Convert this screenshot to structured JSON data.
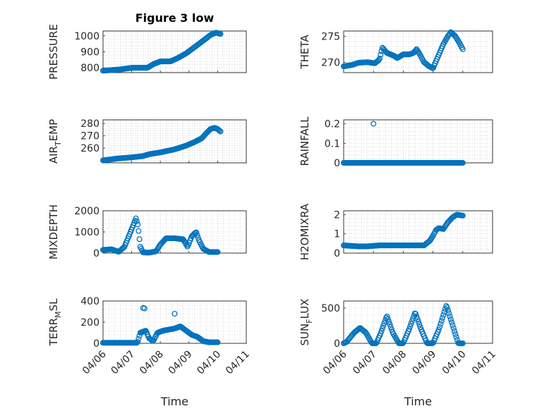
{
  "figure_title": "Figure 3 low",
  "chart_data": [
    {
      "type": "scatter",
      "panel": "PRESSURE",
      "title": "Figure 3 low",
      "ylabel_parts": [
        "PRESSURE"
      ],
      "xlabel": "",
      "xlim": [
        0,
        5
      ],
      "ylim": [
        770,
        1030
      ],
      "yticks": [
        800,
        900,
        1000
      ],
      "ytick_labels": [
        "800",
        "900",
        "1000"
      ],
      "xticks": [
        0,
        1,
        2,
        3,
        4,
        5
      ],
      "xtick_labels": [],
      "keypoints": [
        [
          0,
          782
        ],
        [
          0.6,
          790
        ],
        [
          1.0,
          800
        ],
        [
          1.35,
          800
        ],
        [
          1.55,
          800
        ],
        [
          1.75,
          822
        ],
        [
          2.0,
          840
        ],
        [
          2.35,
          840
        ],
        [
          2.6,
          860
        ],
        [
          2.9,
          890
        ],
        [
          3.2,
          930
        ],
        [
          3.5,
          970
        ],
        [
          3.75,
          1005
        ],
        [
          3.95,
          1020
        ],
        [
          4.1,
          1012
        ]
      ],
      "series": [
        {
          "name": "PRESSURE",
          "x_range": [
            0,
            4.1
          ],
          "count": 130
        }
      ]
    },
    {
      "type": "scatter",
      "panel": "THETA",
      "title": "",
      "ylabel_parts": [
        "THETA"
      ],
      "xlabel": "",
      "xlim": [
        0,
        5
      ],
      "ylim": [
        268,
        276
      ],
      "yticks": [
        270,
        275
      ],
      "ytick_labels": [
        "270",
        "275"
      ],
      "xticks": [
        0,
        1,
        2,
        3,
        4,
        5
      ],
      "xtick_labels": [],
      "keypoints": [
        [
          0,
          269.2
        ],
        [
          0.3,
          269.5
        ],
        [
          0.5,
          269.9
        ],
        [
          0.8,
          270.0
        ],
        [
          1.05,
          269.8
        ],
        [
          1.2,
          270.5
        ],
        [
          1.3,
          272.8
        ],
        [
          1.45,
          271.8
        ],
        [
          1.7,
          271.2
        ],
        [
          1.8,
          270.8
        ],
        [
          2.0,
          271.5
        ],
        [
          2.2,
          271.5
        ],
        [
          2.35,
          271.8
        ],
        [
          2.45,
          272.5
        ],
        [
          2.55,
          271.6
        ],
        [
          2.7,
          270.0
        ],
        [
          2.85,
          269.3
        ],
        [
          3.0,
          268.8
        ],
        [
          3.1,
          270.2
        ],
        [
          3.2,
          271.5
        ],
        [
          3.35,
          273.5
        ],
        [
          3.5,
          275.0
        ],
        [
          3.6,
          275.8
        ],
        [
          3.75,
          275.0
        ],
        [
          3.9,
          273.6
        ],
        [
          4.0,
          272.5
        ]
      ],
      "series": [
        {
          "name": "THETA",
          "x_range": [
            0,
            4.0
          ],
          "count": 130
        }
      ]
    },
    {
      "type": "scatter",
      "panel": "AIR_TEMP",
      "title": "",
      "ylabel_parts": [
        "AIR",
        "T",
        "EMP"
      ],
      "xlabel": "",
      "xlim": [
        0,
        5
      ],
      "ylim": [
        248,
        283
      ],
      "yticks": [
        260,
        270,
        280
      ],
      "ytick_labels": [
        "260",
        "270",
        "280"
      ],
      "xticks": [
        0,
        1,
        2,
        3,
        4,
        5
      ],
      "xtick_labels": [],
      "keypoints": [
        [
          0,
          250
        ],
        [
          0.5,
          251.5
        ],
        [
          1.0,
          252.5
        ],
        [
          1.4,
          253.5
        ],
        [
          1.6,
          255
        ],
        [
          2.0,
          256.5
        ],
        [
          2.5,
          259
        ],
        [
          2.9,
          262
        ],
        [
          3.2,
          265
        ],
        [
          3.45,
          268
        ],
        [
          3.6,
          272
        ],
        [
          3.75,
          275.5
        ],
        [
          3.9,
          276.5
        ],
        [
          4.0,
          275.5
        ],
        [
          4.1,
          273.5
        ]
      ],
      "series": [
        {
          "name": "AIR_TEMP",
          "x_range": [
            0,
            4.1
          ],
          "count": 130
        }
      ]
    },
    {
      "type": "scatter",
      "panel": "RAINFALL",
      "title": "",
      "ylabel_parts": [
        "RAINFALL"
      ],
      "xlabel": "",
      "xlim": [
        0,
        5
      ],
      "ylim": [
        0,
        0.22
      ],
      "yticks": [
        0,
        0.1,
        0.2
      ],
      "ytick_labels": [
        "0",
        "0.1",
        "0.2"
      ],
      "xticks": [
        0,
        1,
        2,
        3,
        4,
        5
      ],
      "xtick_labels": [],
      "keypoints": [
        [
          0,
          0
        ],
        [
          4.0,
          0
        ]
      ],
      "outliers": [
        [
          1.0,
          0.2
        ]
      ],
      "series": [
        {
          "name": "RAINFALL",
          "x_range": [
            0,
            4.0
          ],
          "count": 130
        }
      ]
    },
    {
      "type": "scatter",
      "panel": "MIXDEPTH",
      "title": "",
      "ylabel_parts": [
        "MIXDEPTH"
      ],
      "xlabel": "",
      "xlim": [
        0,
        5
      ],
      "ylim": [
        0,
        2000
      ],
      "yticks": [
        0,
        1000,
        2000
      ],
      "ytick_labels": [
        "0",
        "1000",
        "2000"
      ],
      "xticks": [
        0,
        1,
        2,
        3,
        4,
        5
      ],
      "xtick_labels": [],
      "keypoints": [
        [
          0,
          150
        ],
        [
          0.3,
          180
        ],
        [
          0.55,
          60
        ],
        [
          0.75,
          300
        ],
        [
          0.9,
          800
        ],
        [
          1.05,
          1300
        ],
        [
          1.15,
          1650
        ],
        [
          1.22,
          1300
        ],
        [
          1.3,
          300
        ],
        [
          1.4,
          30
        ],
        [
          1.6,
          20
        ],
        [
          1.85,
          80
        ],
        [
          2.0,
          400
        ],
        [
          2.2,
          700
        ],
        [
          2.5,
          700
        ],
        [
          2.8,
          650
        ],
        [
          2.95,
          300
        ],
        [
          3.1,
          800
        ],
        [
          3.25,
          1000
        ],
        [
          3.35,
          600
        ],
        [
          3.5,
          200
        ],
        [
          3.7,
          50
        ],
        [
          4.0,
          50
        ]
      ],
      "series": [
        {
          "name": "MIXDEPTH",
          "x_range": [
            0,
            4.0
          ],
          "count": 130
        }
      ]
    },
    {
      "type": "scatter",
      "panel": "H2OMIXRA",
      "title": "",
      "ylabel_parts": [
        "H2OMIXRA"
      ],
      "xlabel": "",
      "xlim": [
        0,
        5
      ],
      "ylim": [
        0,
        2.2
      ],
      "yticks": [
        0,
        1,
        2
      ],
      "ytick_labels": [
        "0",
        "1",
        "2"
      ],
      "xticks": [
        0,
        1,
        2,
        3,
        4,
        5
      ],
      "xtick_labels": [],
      "keypoints": [
        [
          0,
          0.4
        ],
        [
          0.5,
          0.35
        ],
        [
          0.8,
          0.35
        ],
        [
          1.2,
          0.4
        ],
        [
          2.0,
          0.4
        ],
        [
          2.7,
          0.4
        ],
        [
          2.9,
          0.65
        ],
        [
          3.0,
          0.9
        ],
        [
          3.1,
          1.2
        ],
        [
          3.2,
          1.3
        ],
        [
          3.35,
          1.25
        ],
        [
          3.5,
          1.6
        ],
        [
          3.65,
          1.85
        ],
        [
          3.8,
          2.0
        ],
        [
          4.0,
          1.95
        ]
      ],
      "series": [
        {
          "name": "H2OMIXRA",
          "x_range": [
            0,
            4.0
          ],
          "count": 130
        }
      ]
    },
    {
      "type": "scatter",
      "panel": "TERR_MSL",
      "title": "",
      "ylabel_parts": [
        "TERR",
        "M",
        "SL"
      ],
      "xlabel": "Time",
      "xlim": [
        0,
        5
      ],
      "ylim": [
        0,
        400
      ],
      "yticks": [
        0,
        200,
        400
      ],
      "ytick_labels": [
        "0",
        "200",
        "400"
      ],
      "xticks": [
        0,
        1,
        2,
        3,
        4,
        5
      ],
      "xtick_labels": [
        "04/06",
        "04/07",
        "04/08",
        "04/09",
        "04/10",
        "04/11"
      ],
      "keypoints": [
        [
          0,
          5
        ],
        [
          0.6,
          5
        ],
        [
          1.2,
          5
        ],
        [
          1.3,
          100
        ],
        [
          1.5,
          120
        ],
        [
          1.6,
          50
        ],
        [
          1.75,
          20
        ],
        [
          1.9,
          100
        ],
        [
          2.1,
          120
        ],
        [
          2.3,
          130
        ],
        [
          2.5,
          140
        ],
        [
          2.7,
          160
        ],
        [
          2.9,
          120
        ],
        [
          3.1,
          80
        ],
        [
          3.3,
          60
        ],
        [
          3.5,
          20
        ],
        [
          3.7,
          10
        ],
        [
          4.0,
          10
        ]
      ],
      "outliers": [
        [
          1.4,
          335
        ],
        [
          1.45,
          330
        ],
        [
          2.5,
          280
        ]
      ],
      "series": [
        {
          "name": "TERR_MSL",
          "x_range": [
            0,
            4.0
          ],
          "count": 130
        }
      ]
    },
    {
      "type": "scatter",
      "panel": "SUN_FLUX",
      "title": "",
      "ylabel_parts": [
        "SUN",
        "F",
        "LUX"
      ],
      "xlabel": "Time",
      "xlim": [
        0,
        5
      ],
      "ylim": [
        0,
        600
      ],
      "yticks": [
        0,
        500
      ],
      "ytick_labels": [
        "0",
        "500"
      ],
      "xticks": [
        0,
        1,
        2,
        3,
        4,
        5
      ],
      "xtick_labels": [
        "04/06",
        "04/07",
        "04/08",
        "04/09",
        "04/10",
        "04/11"
      ],
      "keypoints": [
        [
          0,
          0
        ],
        [
          0.1,
          20
        ],
        [
          0.35,
          150
        ],
        [
          0.55,
          220
        ],
        [
          0.75,
          150
        ],
        [
          0.95,
          0
        ],
        [
          1.1,
          0
        ],
        [
          1.25,
          150
        ],
        [
          1.45,
          390
        ],
        [
          1.65,
          150
        ],
        [
          1.85,
          0
        ],
        [
          2.0,
          0
        ],
        [
          2.2,
          200
        ],
        [
          2.4,
          440
        ],
        [
          2.6,
          200
        ],
        [
          2.8,
          0
        ],
        [
          3.0,
          0
        ],
        [
          3.2,
          200
        ],
        [
          3.45,
          540
        ],
        [
          3.7,
          200
        ],
        [
          3.85,
          0
        ],
        [
          4.0,
          0
        ]
      ],
      "series": [
        {
          "name": "SUN_FLUX",
          "x_range": [
            0,
            4.0
          ],
          "count": 130
        }
      ]
    }
  ],
  "colors": {
    "marker": "#0072bd",
    "axis": "#262626",
    "grid": "#d0d0d0",
    "background": "#ffffff"
  }
}
